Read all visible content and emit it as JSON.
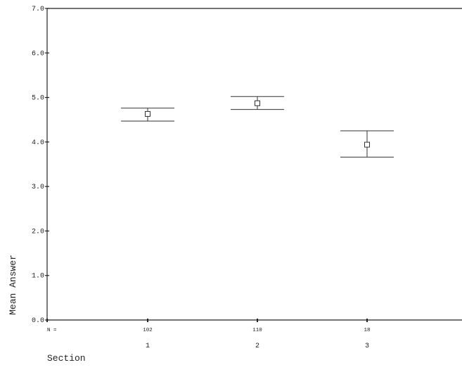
{
  "chart_data": {
    "type": "errorbar",
    "title": "",
    "xlabel": "Section",
    "ylabel": "Mean Answer",
    "ylim": [
      0,
      7
    ],
    "y_ticks": [
      "0.0",
      "1.0",
      "2.0",
      "3.0",
      "4.0",
      "5.0",
      "6.0",
      "7.0"
    ],
    "n_prefix": "N =",
    "categories": [
      "1",
      "2",
      "3"
    ],
    "n": [
      "102",
      "110",
      "18"
    ],
    "mean": [
      4.63,
      4.87,
      3.94
    ],
    "upper": [
      4.76,
      5.02,
      4.25
    ],
    "lower": [
      4.47,
      4.73,
      3.66
    ],
    "grid": false,
    "marker": "open-square"
  }
}
